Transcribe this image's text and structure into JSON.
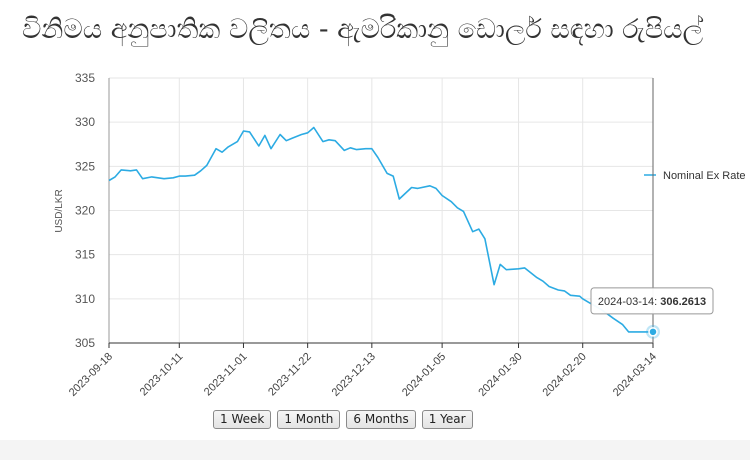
{
  "page": {
    "title": "විනිමය අනුපාතික වලිතය - ඇමරිකානු ඩොලර් සඳහා රුපියල්"
  },
  "range_buttons": [
    {
      "label": "1 Week"
    },
    {
      "label": "1 Month"
    },
    {
      "label": "6 Months"
    },
    {
      "label": "1 Year"
    }
  ],
  "tooltip": {
    "date": "2024-03-14",
    "value": "306.2613"
  },
  "colors": {
    "series": "#2cabe3",
    "grid": "#e6e6e6",
    "axis": "#999999"
  },
  "chart_data": {
    "type": "line",
    "title": "",
    "xlabel": "",
    "ylabel": "USD/LKR",
    "ylim": [
      305,
      335
    ],
    "yticks": [
      305,
      310,
      315,
      320,
      325,
      330,
      335
    ],
    "xlim": [
      "2023-09-18",
      "2024-03-14"
    ],
    "xticks": [
      "2023-09-18",
      "2023-10-11",
      "2023-11-01",
      "2023-11-22",
      "2023-12-13",
      "2024-01-05",
      "2024-01-30",
      "2024-02-20",
      "2024-03-14"
    ],
    "grid": true,
    "legend": "right",
    "series": [
      {
        "name": "Nominal Ex Rate",
        "x": [
          "2023-09-18",
          "2023-09-20",
          "2023-09-22",
          "2023-09-25",
          "2023-09-27",
          "2023-09-29",
          "2023-10-02",
          "2023-10-04",
          "2023-10-06",
          "2023-10-09",
          "2023-10-11",
          "2023-10-13",
          "2023-10-16",
          "2023-10-18",
          "2023-10-20",
          "2023-10-23",
          "2023-10-25",
          "2023-10-27",
          "2023-10-30",
          "2023-11-01",
          "2023-11-03",
          "2023-11-06",
          "2023-11-08",
          "2023-11-10",
          "2023-11-13",
          "2023-11-15",
          "2023-11-17",
          "2023-11-20",
          "2023-11-22",
          "2023-11-24",
          "2023-11-27",
          "2023-11-29",
          "2023-12-01",
          "2023-12-04",
          "2023-12-06",
          "2023-12-08",
          "2023-12-11",
          "2023-12-13",
          "2023-12-15",
          "2023-12-18",
          "2023-12-20",
          "2023-12-22",
          "2023-12-26",
          "2023-12-28",
          "2024-01-01",
          "2024-01-03",
          "2024-01-05",
          "2024-01-08",
          "2024-01-10",
          "2024-01-12",
          "2024-01-15",
          "2024-01-17",
          "2024-01-19",
          "2024-01-22",
          "2024-01-24",
          "2024-01-26",
          "2024-01-30",
          "2024-02-01",
          "2024-02-05",
          "2024-02-07",
          "2024-02-09",
          "2024-02-12",
          "2024-02-14",
          "2024-02-16",
          "2024-02-19",
          "2024-02-20",
          "2024-02-22",
          "2024-02-26",
          "2024-02-28",
          "2024-03-01",
          "2024-03-04",
          "2024-03-06",
          "2024-03-08",
          "2024-03-11",
          "2024-03-14"
        ],
        "values": [
          323.4,
          323.8,
          324.6,
          324.5,
          324.6,
          323.6,
          323.8,
          323.7,
          323.6,
          323.7,
          323.9,
          323.9,
          324.0,
          324.5,
          325.1,
          327.0,
          326.6,
          327.2,
          327.8,
          329.0,
          328.9,
          327.3,
          328.5,
          327.0,
          328.6,
          327.9,
          328.2,
          328.6,
          328.8,
          329.4,
          327.8,
          328.0,
          327.9,
          326.8,
          327.1,
          326.9,
          327.0,
          327.0,
          326.0,
          324.2,
          323.9,
          321.3,
          322.6,
          322.5,
          322.8,
          322.5,
          321.7,
          321.0,
          320.3,
          319.9,
          317.6,
          317.9,
          316.8,
          311.6,
          313.9,
          313.3,
          313.4,
          313.5,
          312.4,
          312.0,
          311.4,
          311.0,
          310.9,
          310.4,
          310.3,
          310.0,
          309.6,
          308.8,
          308.3,
          307.8,
          307.1,
          306.2613,
          306.2613,
          306.2613,
          306.2613
        ]
      }
    ]
  }
}
